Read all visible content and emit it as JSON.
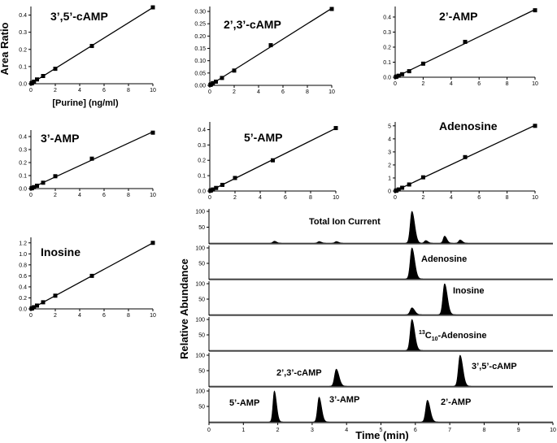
{
  "figure": {
    "calibration_ylabel": "Area Ratio",
    "calibration_xlabel": "[Purine] (ng/ml)",
    "chrom_ylabel": "Relative Abundance",
    "chrom_xlabel": "Time (min)"
  },
  "chart_data": [
    {
      "type": "scatter",
      "title": "3’,5’-cAMP",
      "x": [
        0.05,
        0.1,
        0.25,
        0.5,
        1,
        2,
        5,
        10
      ],
      "y": [
        0.002,
        0.005,
        0.012,
        0.025,
        0.045,
        0.087,
        0.22,
        0.445
      ],
      "xlim": [
        0,
        10
      ],
      "ylim": [
        0,
        0.45
      ],
      "xticks": [
        "0",
        "2",
        "4",
        "6",
        "8",
        "10"
      ],
      "yticks": [
        "0.0",
        "0.1",
        "0.2",
        "0.3",
        "0.4"
      ],
      "fit_line": true
    },
    {
      "type": "scatter",
      "title": "2’,3’-cAMP",
      "x": [
        0.05,
        0.1,
        0.25,
        0.5,
        1,
        2,
        5,
        10
      ],
      "y": [
        0.002,
        0.004,
        0.009,
        0.015,
        0.03,
        0.06,
        0.163,
        0.31
      ],
      "xlim": [
        0,
        10
      ],
      "ylim": [
        0,
        0.32
      ],
      "xticks": [
        "0",
        "2",
        "4",
        "6",
        "8",
        "10"
      ],
      "yticks": [
        "0.00",
        "0.05",
        "0.10",
        "0.15",
        "0.20",
        "0.25",
        "0.30"
      ],
      "fit_line": true
    },
    {
      "type": "scatter",
      "title": "2’-AMP",
      "x": [
        0.05,
        0.1,
        0.25,
        0.5,
        1,
        2,
        5,
        10
      ],
      "y": [
        0.002,
        0.005,
        0.01,
        0.02,
        0.04,
        0.09,
        0.235,
        0.445
      ],
      "xlim": [
        0,
        10
      ],
      "ylim": [
        0,
        0.47
      ],
      "xticks": [
        "0",
        "2",
        "4",
        "6",
        "8",
        "10"
      ],
      "yticks": [
        "0.0",
        "0.1",
        "0.2",
        "0.3",
        "0.4"
      ],
      "fit_line": true
    },
    {
      "type": "scatter",
      "title": "3’-AMP",
      "x": [
        0.05,
        0.1,
        0.25,
        0.5,
        1,
        2,
        5,
        10
      ],
      "y": [
        0.002,
        0.005,
        0.011,
        0.022,
        0.045,
        0.095,
        0.23,
        0.43
      ],
      "xlim": [
        0,
        10
      ],
      "ylim": [
        0,
        0.45
      ],
      "xticks": [
        "0",
        "2",
        "4",
        "6",
        "8",
        "10"
      ],
      "yticks": [
        "0.0",
        "0.1",
        "0.2",
        "0.3",
        "0.4"
      ],
      "fit_line": true
    },
    {
      "type": "scatter",
      "title": "5’-AMP",
      "x": [
        0.05,
        0.1,
        0.25,
        0.5,
        1,
        2,
        5,
        10
      ],
      "y": [
        0.002,
        0.005,
        0.01,
        0.02,
        0.04,
        0.085,
        0.2,
        0.41
      ],
      "xlim": [
        0,
        10
      ],
      "ylim": [
        0,
        0.45
      ],
      "xticks": [
        "0",
        "2",
        "4",
        "6",
        "8",
        "10"
      ],
      "yticks": [
        "0.0",
        "0.1",
        "0.2",
        "0.3",
        "0.4"
      ],
      "fit_line": true
    },
    {
      "type": "scatter",
      "title": "Adenosine",
      "x": [
        0.05,
        0.1,
        0.25,
        0.5,
        1,
        2,
        5,
        10
      ],
      "y": [
        0.02,
        0.05,
        0.12,
        0.25,
        0.5,
        1.05,
        2.6,
        5.0
      ],
      "xlim": [
        0,
        10
      ],
      "ylim": [
        0,
        5.3
      ],
      "xticks": [
        "0",
        "2",
        "4",
        "6",
        "8",
        "10"
      ],
      "yticks": [
        "0",
        "1",
        "2",
        "3",
        "4",
        "5"
      ],
      "fit_line": true
    },
    {
      "type": "scatter",
      "title": "Inosine",
      "x": [
        0.05,
        0.1,
        0.25,
        0.5,
        1,
        2,
        5,
        10
      ],
      "y": [
        0.005,
        0.012,
        0.03,
        0.06,
        0.12,
        0.24,
        0.6,
        1.2
      ],
      "xlim": [
        0,
        10
      ],
      "ylim": [
        0,
        1.3
      ],
      "xticks": [
        "0",
        "2",
        "4",
        "6",
        "8",
        "10"
      ],
      "yticks": [
        "0.0",
        "0.2",
        "0.4",
        "0.6",
        "0.8",
        "1.0",
        "1.2"
      ],
      "fit_line": true
    },
    {
      "type": "line",
      "xlim": [
        0,
        10
      ],
      "xticks": [
        "0",
        "1",
        "2",
        "3",
        "4",
        "5",
        "6",
        "7",
        "8",
        "9",
        "10"
      ],
      "ylim": [
        0,
        100
      ],
      "traces": [
        {
          "label": "Total Ion Current",
          "yticks": [
            "100",
            "50"
          ],
          "peaks": [
            [
              1.9,
              6,
              0.04
            ],
            [
              3.2,
              5,
              0.04
            ],
            [
              3.7,
              5,
              0.04
            ],
            [
              5.9,
              100,
              0.05
            ],
            [
              6.3,
              8,
              0.04
            ],
            [
              6.85,
              22,
              0.04
            ],
            [
              7.3,
              10,
              0.04
            ]
          ]
        },
        {
          "label": "Adenosine",
          "yticks": [
            "100",
            "50"
          ],
          "peaks": [
            [
              5.9,
              100,
              0.05
            ]
          ]
        },
        {
          "label": "Inosine",
          "yticks": [
            "100",
            "50"
          ],
          "peaks": [
            [
              5.9,
              22,
              0.05
            ],
            [
              6.85,
              100,
              0.05
            ]
          ]
        },
        {
          "label_sup": "13",
          "label_sub": "C",
          "label_subscript": "10",
          "label_tail": "-Adenosine",
          "yticks": [
            "100",
            "50"
          ],
          "peaks": [
            [
              5.9,
              100,
              0.05
            ]
          ]
        },
        {
          "label": "2’,3’-cAMP",
          "yticks": [
            "100",
            "50"
          ],
          "peaks": [
            [
              3.7,
              55,
              0.05
            ],
            [
              7.3,
              100,
              0.05
            ]
          ],
          "label2": "3’,5’-cAMP"
        },
        {
          "label": "5’-AMP",
          "yticks": [
            "100",
            "50"
          ],
          "peaks": [
            [
              1.9,
              100,
              0.04
            ],
            [
              3.2,
              80,
              0.045
            ],
            [
              6.35,
              70,
              0.05
            ]
          ],
          "label2": "3’-AMP",
          "label3": "2’-AMP"
        }
      ]
    }
  ]
}
